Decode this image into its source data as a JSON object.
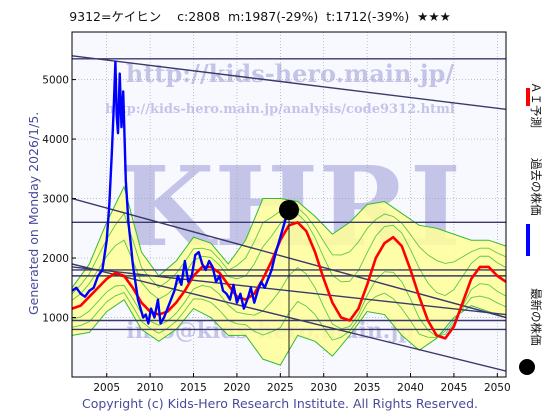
{
  "header": {
    "ticker": "9312=ケイヒン",
    "close": "c:2808",
    "model": "m:1987(-29%)",
    "target": "t:1712(-39%)",
    "stars": "★★★"
  },
  "generated": "Generated on Monday 2026/1/5.",
  "copyright": "Copyright (c) Kids-Hero Research Institute. All Rights Reserved.",
  "watermarks": {
    "url1": "http://kids-hero.main.jp/",
    "url2": "http://kids-hero.main.jp/analysis/code9312.html",
    "logo": "KHRI",
    "email": "info@kids-hero.main.jp"
  },
  "colors": {
    "background": "#f8f8ff",
    "grid": "#a0a0a0",
    "band_fill": "#ffff99",
    "band_lines": "#33bb33",
    "ai_prediction": "#ff0000",
    "past_price": "#0000ff",
    "latest_price": "#000000",
    "trend_lines": "#3a3a6a"
  },
  "legend": {
    "ai_prediction": "ＡＩ予測",
    "past_price": "過去の株価",
    "latest_price": "最新の株価"
  },
  "chart_data": {
    "type": "line",
    "xlim": [
      2001,
      2051
    ],
    "ylim": [
      0,
      5800
    ],
    "xticks": [
      2005,
      2010,
      2015,
      2020,
      2025,
      2030,
      2035,
      2040,
      2045,
      2050
    ],
    "yticks": [
      1000,
      2000,
      3000,
      4000,
      5000
    ],
    "grid": true,
    "latest_point": {
      "x": 2026.0,
      "y": 2808
    },
    "series": [
      {
        "name": "過去の株価",
        "x": [
          2001.0,
          2001.5,
          2002.0,
          2002.5,
          2003.0,
          2003.5,
          2004.0,
          2004.5,
          2005.0,
          2005.3,
          2005.6,
          2005.8,
          2006.0,
          2006.15,
          2006.3,
          2006.5,
          2006.7,
          2006.9,
          2007.2,
          2007.5,
          2007.8,
          2008.0,
          2008.3,
          2008.6,
          2008.9,
          2009.2,
          2009.5,
          2009.8,
          2010.1,
          2010.5,
          2010.9,
          2011.2,
          2011.6,
          2012.0,
          2012.4,
          2012.8,
          2013.2,
          2013.6,
          2014.0,
          2014.4,
          2014.8,
          2015.2,
          2015.6,
          2016.0,
          2016.4,
          2016.8,
          2017.2,
          2017.6,
          2018.0,
          2018.4,
          2018.8,
          2019.2,
          2019.6,
          2020.0,
          2020.4,
          2020.8,
          2021.2,
          2021.6,
          2022.0,
          2022.4,
          2022.8,
          2023.2,
          2023.6,
          2024.0,
          2024.4,
          2024.8,
          2025.2,
          2025.6,
          2026.0
        ],
        "values": [
          1450,
          1500,
          1400,
          1350,
          1450,
          1500,
          1700,
          1800,
          2300,
          2900,
          3800,
          4500,
          5300,
          4400,
          4100,
          5100,
          4200,
          4800,
          3300,
          2600,
          2200,
          1900,
          1600,
          1300,
          1150,
          1000,
          1050,
          900,
          1150,
          1000,
          1300,
          900,
          1000,
          1150,
          1300,
          1450,
          1700,
          1550,
          1950,
          1600,
          1700,
          2050,
          2100,
          1900,
          1800,
          1950,
          1850,
          1600,
          1700,
          1450,
          1400,
          1300,
          1550,
          1250,
          1400,
          1150,
          1300,
          1500,
          1250,
          1450,
          1600,
          1500,
          1650,
          1800,
          2050,
          2250,
          2450,
          2650,
          2808
        ]
      },
      {
        "name": "ＡＩ予測",
        "x": [
          2001,
          2002,
          2003,
          2004,
          2005,
          2006,
          2007,
          2008,
          2009,
          2010,
          2011,
          2012,
          2013,
          2014,
          2015,
          2016,
          2017,
          2018,
          2019,
          2020,
          2021,
          2022,
          2023,
          2024,
          2025,
          2026,
          2027,
          2028,
          2029,
          2030,
          2031,
          2032,
          2033,
          2034,
          2035,
          2036,
          2037,
          2038,
          2039,
          2040,
          2041,
          2042,
          2043,
          2044,
          2045,
          2046,
          2047,
          2048,
          2049,
          2050,
          2051
        ],
        "values": [
          1150,
          1200,
          1350,
          1500,
          1650,
          1750,
          1700,
          1500,
          1250,
          1100,
          1050,
          1100,
          1250,
          1450,
          1700,
          1850,
          1850,
          1750,
          1550,
          1350,
          1300,
          1400,
          1650,
          1950,
          2300,
          2550,
          2600,
          2450,
          2100,
          1650,
          1250,
          1000,
          950,
          1150,
          1550,
          2000,
          2250,
          2350,
          2200,
          1800,
          1350,
          950,
          700,
          650,
          850,
          1250,
          1650,
          1850,
          1850,
          1700,
          1600
        ]
      }
    ],
    "bands": {
      "x": [
        2001,
        2003,
        2005,
        2007,
        2009,
        2011,
        2013,
        2015,
        2017,
        2019,
        2021,
        2023,
        2025,
        2027,
        2029,
        2031,
        2033,
        2035,
        2037,
        2039,
        2041,
        2043,
        2045,
        2047,
        2049,
        2051
      ],
      "upper": [
        1500,
        1900,
        2600,
        3200,
        2100,
        1700,
        1950,
        2350,
        2250,
        1900,
        2300,
        3000,
        3000,
        2950,
        2700,
        2400,
        2600,
        2900,
        2950,
        2750,
        2550,
        2500,
        2400,
        2300,
        2300,
        2200
      ],
      "lower": [
        700,
        750,
        1100,
        1300,
        800,
        600,
        800,
        1150,
        1000,
        700,
        700,
        300,
        200,
        700,
        600,
        350,
        700,
        1100,
        1050,
        700,
        450,
        650,
        1000,
        1200,
        1100,
        1000
      ]
    },
    "trend_lines": [
      {
        "x": [
          2001,
          2051
        ],
        "values": [
          5350,
          5350
        ]
      },
      {
        "x": [
          2001,
          2051
        ],
        "values": [
          5400,
          4500
        ]
      },
      {
        "x": [
          2001,
          2051
        ],
        "values": [
          2600,
          2600
        ]
      },
      {
        "x": [
          2001,
          2051
        ],
        "values": [
          3000,
          1000
        ]
      },
      {
        "x": [
          2001,
          2051
        ],
        "values": [
          1800,
          1800
        ]
      },
      {
        "x": [
          2001,
          2051
        ],
        "values": [
          1700,
          1700
        ]
      },
      {
        "x": [
          2001,
          2051
        ],
        "values": [
          1850,
          1050
        ]
      },
      {
        "x": [
          2001,
          2051
        ],
        "values": [
          950,
          950
        ]
      },
      {
        "x": [
          2001,
          2051
        ],
        "values": [
          800,
          800
        ]
      },
      {
        "x": [
          2001,
          2051
        ],
        "values": [
          1900,
          100
        ]
      }
    ],
    "current_marker_x": 2026.0
  }
}
